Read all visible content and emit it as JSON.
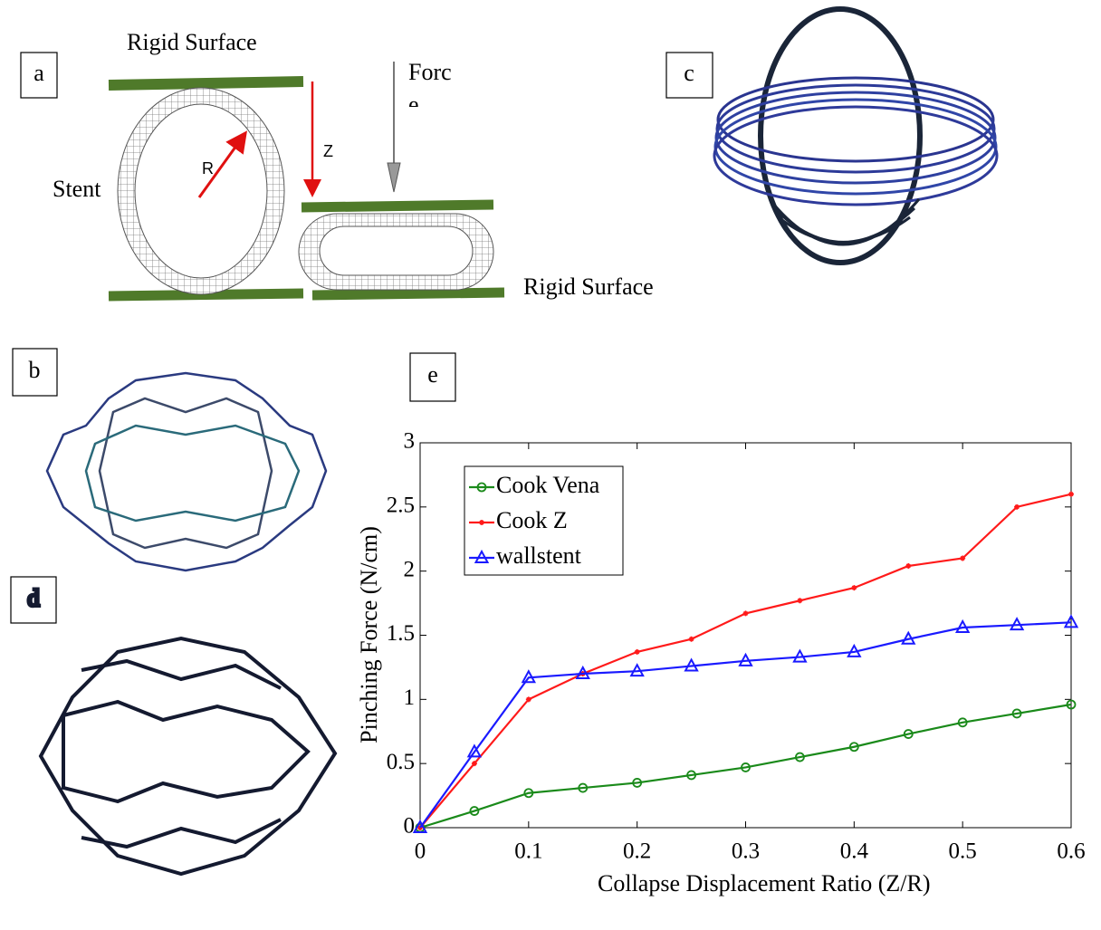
{
  "chart_data": {
    "type": "line",
    "xlabel": "Collapse Displacement Ratio (Z/R)",
    "ylabel": "Pinching Force (N/cm)",
    "x": [
      0,
      0.05,
      0.1,
      0.15,
      0.2,
      0.25,
      0.3,
      0.35,
      0.4,
      0.45,
      0.5,
      0.55,
      0.6
    ],
    "series": [
      {
        "name": "Cook Vena",
        "color": "#1a8a1a",
        "marker": "circle",
        "values": [
          0,
          0.13,
          0.27,
          0.31,
          0.35,
          0.41,
          0.47,
          0.55,
          0.63,
          0.73,
          0.82,
          0.89,
          0.96
        ]
      },
      {
        "name": "Cook Z",
        "color": "#ff1a1a",
        "marker": "star",
        "values": [
          0,
          0.5,
          1.0,
          1.2,
          1.37,
          1.47,
          1.67,
          1.77,
          1.87,
          2.04,
          2.1,
          2.5,
          2.6
        ]
      },
      {
        "name": "wallstent",
        "color": "#1a1aff",
        "marker": "triangle",
        "values": [
          0,
          0.59,
          1.17,
          1.2,
          1.22,
          1.26,
          1.3,
          1.33,
          1.37,
          1.47,
          1.56,
          1.58,
          1.6
        ]
      }
    ],
    "xlim": [
      0,
      0.6
    ],
    "xticks": [
      0,
      0.1,
      0.2,
      0.3,
      0.4,
      0.5,
      0.6
    ],
    "ylim": [
      0,
      3
    ],
    "yticks": [
      0,
      0.5,
      1,
      1.5,
      2,
      2.5,
      3
    ],
    "grid": false,
    "legend": "upper left"
  },
  "panels": {
    "a": {
      "label": "a",
      "top_surface": "Rigid Surface",
      "bottom_surface": "Rigid Surface",
      "stent": "Stent",
      "radius": "R",
      "displacement": "Z",
      "force": [
        "Forc",
        "e"
      ]
    },
    "b": {
      "label": "b"
    },
    "c": {
      "label": "c"
    },
    "d": {
      "label": "d"
    },
    "e": {
      "label": "e"
    }
  }
}
